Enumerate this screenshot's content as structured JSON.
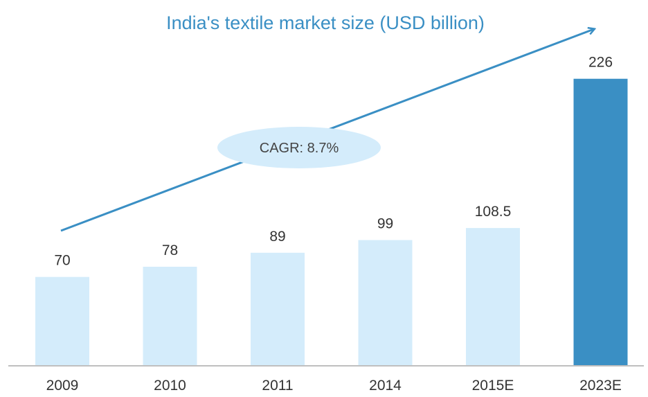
{
  "chart_data": {
    "type": "bar",
    "title": "India's textile market size (USD billion)",
    "categories": [
      "2009",
      "2010",
      "2011",
      "2014",
      "2015E",
      "2023E"
    ],
    "values": [
      70,
      78,
      89,
      99,
      108.5,
      226
    ],
    "value_labels": [
      "70",
      "78",
      "89",
      "99",
      "108.5",
      "226"
    ],
    "ylim": [
      0,
      240
    ],
    "grid": false,
    "legend": "none",
    "annotation": "CAGR: 8.7%",
    "colors": {
      "title": "#3a8fc4",
      "bar": "#d4ecfb",
      "bar_highlight": "#3a8fc4",
      "arrow": "#3a8fc4",
      "annotation_bg": "#d4ecfb",
      "axis": "#bfbfbf"
    },
    "highlight_index": 5
  }
}
